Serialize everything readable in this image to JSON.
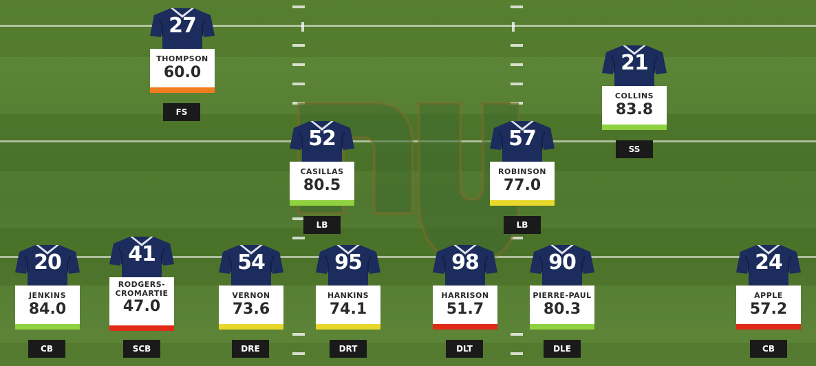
{
  "colors": {
    "jersey": "#1c2c5c",
    "bar_green": "#8fd13f",
    "bar_orange": "#f47c20",
    "bar_red": "#e02b18",
    "bar_yellow": "#e8d82c"
  },
  "players": [
    {
      "number": "27",
      "name": "THOMPSON",
      "grade": "60.0",
      "position": "FS",
      "bar": "#f47c20"
    },
    {
      "number": "21",
      "name": "COLLINS",
      "grade": "83.8",
      "position": "SS",
      "bar": "#8fd13f"
    },
    {
      "number": "52",
      "name": "CASILLAS",
      "grade": "80.5",
      "position": "LB",
      "bar": "#8fd13f"
    },
    {
      "number": "57",
      "name": "ROBINSON",
      "grade": "77.0",
      "position": "LB",
      "bar": "#e8d82c"
    },
    {
      "number": "20",
      "name": "JENKINS",
      "grade": "84.0",
      "position": "CB",
      "bar": "#8fd13f"
    },
    {
      "number": "41",
      "name": "RODGERS-\nCROMARTIE",
      "grade": "47.0",
      "position": "SCB",
      "bar": "#e02b18"
    },
    {
      "number": "54",
      "name": "VERNON",
      "grade": "73.6",
      "position": "DRE",
      "bar": "#e8d82c"
    },
    {
      "number": "95",
      "name": "HANKINS",
      "grade": "74.1",
      "position": "DRT",
      "bar": "#e8d82c"
    },
    {
      "number": "98",
      "name": "HARRISON",
      "grade": "51.7",
      "position": "DLT",
      "bar": "#e02b18"
    },
    {
      "number": "90",
      "name": "PIERRE-PAUL",
      "grade": "80.3",
      "position": "DLE",
      "bar": "#8fd13f"
    },
    {
      "number": "24",
      "name": "APPLE",
      "grade": "57.2",
      "position": "CB",
      "bar": "#e02b18"
    }
  ]
}
